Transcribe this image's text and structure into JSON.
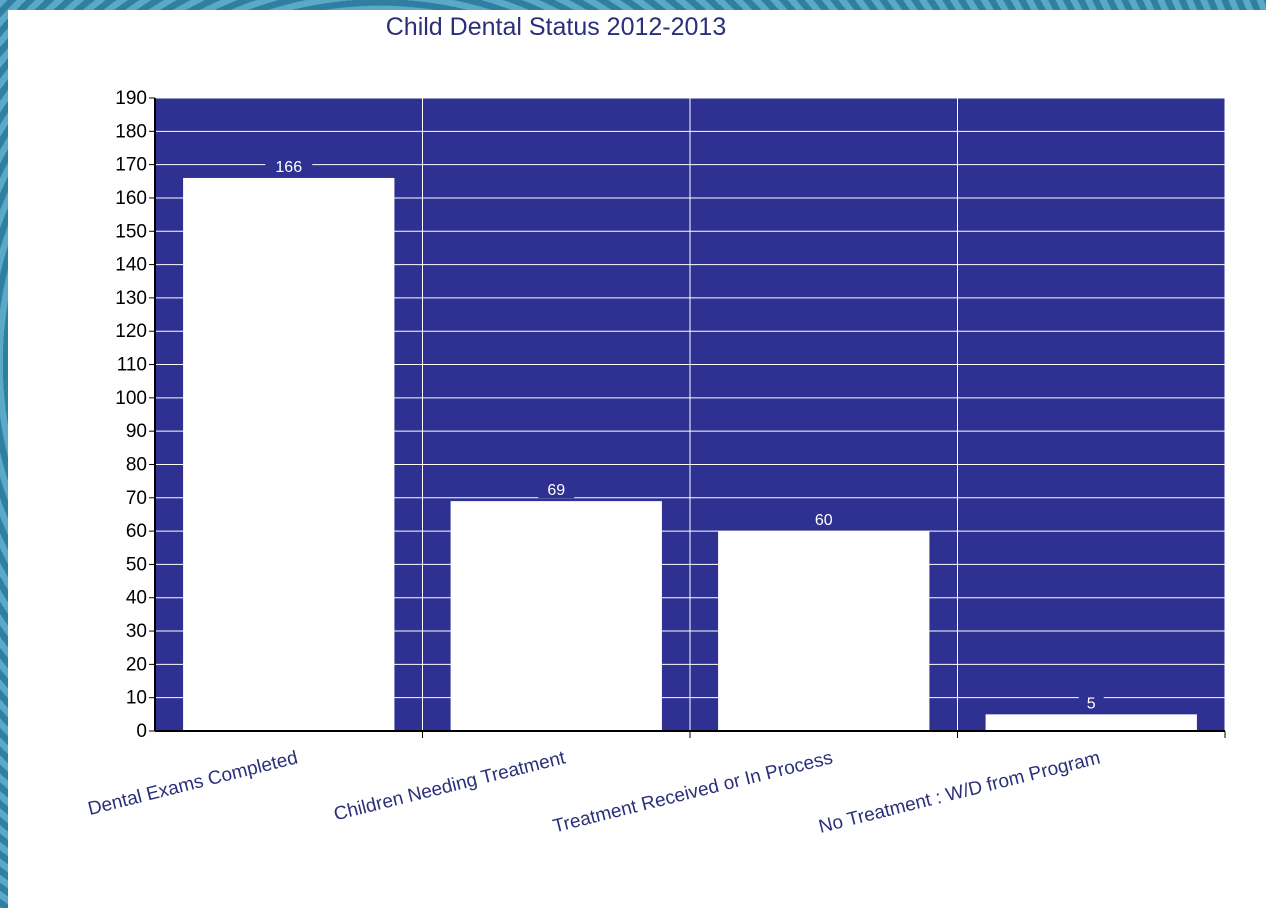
{
  "chart_data": {
    "type": "bar",
    "title": "Child Dental Status 2012-2013",
    "categories": [
      "Dental Exams Completed",
      "Children Needing Treatment",
      "Treatment Received or In Process",
      "No Treatment : W/D from Program"
    ],
    "values": [
      166,
      69,
      60,
      5
    ],
    "data_labels": [
      "166",
      "69",
      "60",
      "5"
    ],
    "xlabel": "",
    "ylabel": "",
    "ylim": [
      0,
      190
    ],
    "ytick_step": 10,
    "grid": true,
    "legend": "none",
    "colors": {
      "plot_background": "#2e3192",
      "bar_fill": "#ffffff",
      "gridline": "#ffffff",
      "title": "#2b2f7a",
      "category_label": "#2b2f7a"
    }
  }
}
